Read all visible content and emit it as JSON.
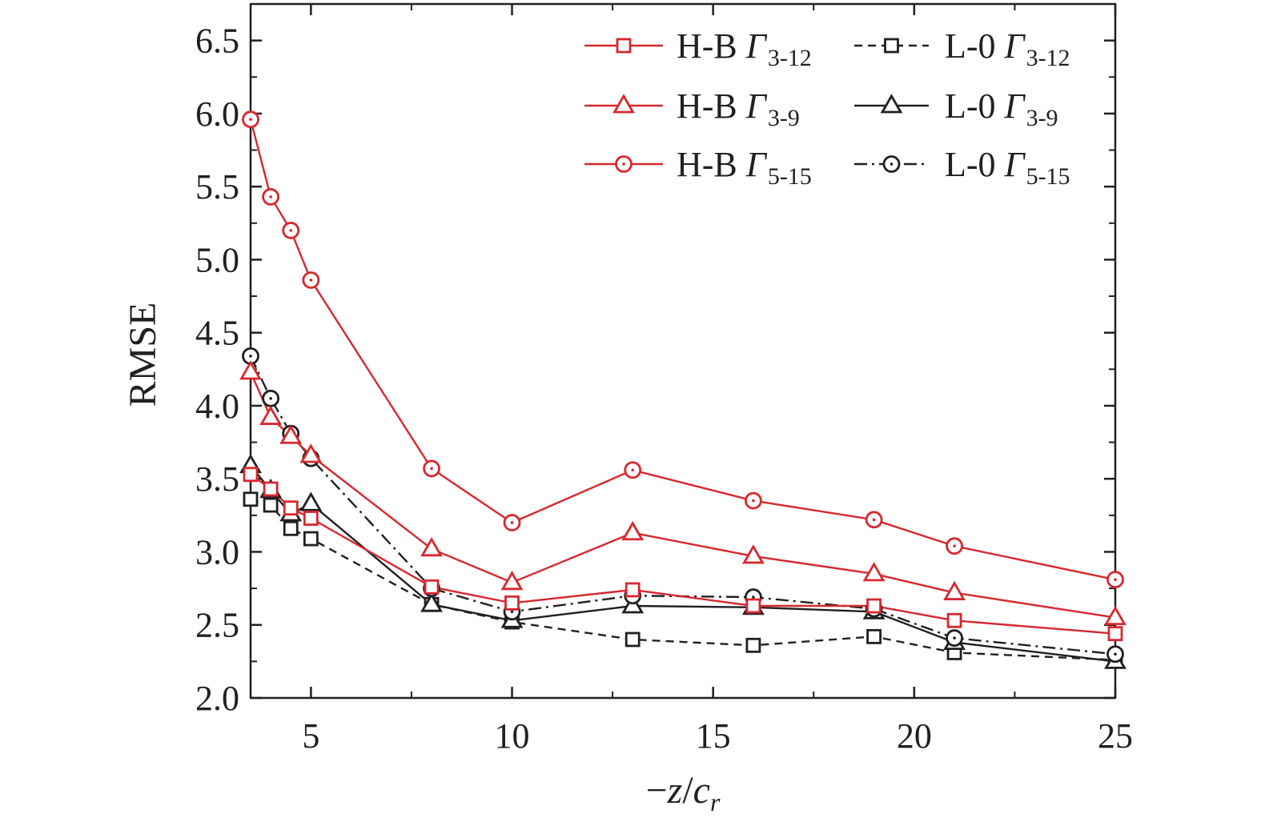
{
  "chart_data": {
    "type": "line",
    "xlabel_parts": {
      "minus": "−",
      "z": "z",
      "slash": "/",
      "c": "c",
      "sub": "r"
    },
    "ylabel": "RMSE",
    "xlim": [
      3.5,
      25
    ],
    "ylim": [
      2.0,
      6.75
    ],
    "xticks": [
      5,
      10,
      15,
      20,
      25
    ],
    "yticks": [
      2.0,
      2.5,
      3.0,
      3.5,
      4.0,
      4.5,
      5.0,
      5.5,
      6.0,
      6.5
    ],
    "grid": false,
    "legend_position": "top-right",
    "x": [
      3.5,
      4,
      4.5,
      5,
      8,
      10,
      13,
      16,
      19,
      21,
      25
    ],
    "series": [
      {
        "name": "H-B Γ 3-12",
        "prefix": "H-B ",
        "gamma": "Γ",
        "sub": "3-12",
        "color": "#d7282f",
        "marker": "square",
        "dash": "solid",
        "values": [
          3.53,
          3.43,
          3.3,
          3.23,
          2.76,
          2.65,
          2.74,
          2.63,
          2.63,
          2.53,
          2.44
        ]
      },
      {
        "name": "H-B Γ 3-9",
        "prefix": "H-B ",
        "gamma": "Γ",
        "sub": "3-9",
        "color": "#d7282f",
        "marker": "triangle",
        "dash": "solid",
        "values": [
          4.23,
          3.92,
          3.79,
          3.66,
          3.02,
          2.79,
          3.13,
          2.97,
          2.85,
          2.72,
          2.55
        ]
      },
      {
        "name": "H-B Γ 5-15",
        "prefix": "H-B ",
        "gamma": "Γ",
        "sub": "5-15",
        "color": "#d7282f",
        "marker": "circle",
        "dash": "solid",
        "values": [
          5.96,
          5.43,
          5.2,
          4.86,
          3.57,
          3.2,
          3.56,
          3.35,
          3.22,
          3.04,
          2.81
        ]
      },
      {
        "name": "L-0 Γ 3-12",
        "prefix": "L-0 ",
        "gamma": "Γ",
        "sub": "3-12",
        "color": "#231f20",
        "marker": "square",
        "dash": "dash",
        "values": [
          3.36,
          3.32,
          3.16,
          3.09,
          2.64,
          2.52,
          2.4,
          2.36,
          2.42,
          2.31,
          2.26
        ]
      },
      {
        "name": "L-0 Γ 3-9",
        "prefix": "L-0 ",
        "gamma": "Γ",
        "sub": "3-9",
        "color": "#231f20",
        "marker": "triangle",
        "dash": "solid",
        "values": [
          3.59,
          3.42,
          3.26,
          3.33,
          2.64,
          2.53,
          2.63,
          2.62,
          2.59,
          2.38,
          2.25
        ]
      },
      {
        "name": "L-0 Γ 5-15",
        "prefix": "L-0 ",
        "gamma": "Γ",
        "sub": "5-15",
        "color": "#231f20",
        "marker": "circle",
        "dash": "dashdot",
        "values": [
          4.34,
          4.05,
          3.81,
          3.64,
          2.75,
          2.59,
          2.7,
          2.69,
          2.61,
          2.41,
          2.3
        ]
      }
    ]
  }
}
